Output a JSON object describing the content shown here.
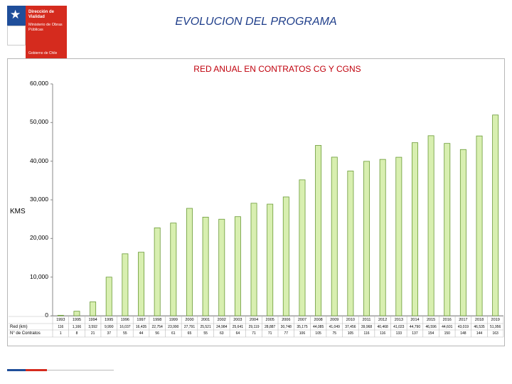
{
  "logo": {
    "line1": "Dirección de Vialidad",
    "line2": "Ministerio de Obras Públicas",
    "footer": "Gobierno de Chile",
    "star_glyph": "★"
  },
  "page_title": "EVOLUCION DEL PROGRAMA",
  "chart_data": {
    "type": "bar",
    "title": "RED ANUAL EN CONTRATOS CG Y CGNS",
    "ylabel": "KMS",
    "xlabel": "",
    "ylim": [
      0,
      60000
    ],
    "ytick_labels": [
      "60,000",
      "50,000",
      "40,000",
      "30,000",
      "20,000",
      "10,000",
      "0"
    ],
    "ytick_values": [
      60000,
      50000,
      40000,
      30000,
      20000,
      10000,
      0
    ],
    "grid": false,
    "bar_color": "#d8efb0",
    "bar_stroke": "#6a9a36",
    "categories": [
      "1993",
      "1995",
      "1994",
      "1995",
      "1996",
      "1997",
      "1998",
      "1999",
      "2000",
      "2001",
      "2002",
      "2003",
      "2004",
      "2005",
      "2006",
      "2007",
      "2008",
      "2009",
      "2010",
      "2011",
      "2012",
      "2013",
      "2014",
      "2015",
      "2016",
      "2017",
      "2018",
      "2019"
    ],
    "values": [
      116,
      1166,
      3592,
      9990,
      16037,
      16435,
      22754,
      23990,
      27791,
      25521,
      24984,
      25641,
      29119,
      28887,
      30748,
      35175,
      44085,
      41049,
      37456,
      39968,
      40468,
      41023,
      44790,
      46596,
      44601,
      43019,
      46535,
      51956
    ],
    "table_rows": [
      {
        "label": "Red (km)",
        "cells": [
          "116",
          "1,166",
          "3,592",
          "9,990",
          "16,037",
          "16,435",
          "22,754",
          "23,990",
          "27,791",
          "25,521",
          "24,984",
          "25,641",
          "29,119",
          "28,887",
          "30,748",
          "35,175",
          "44,085",
          "41,049",
          "37,456",
          "39,968",
          "40,468",
          "41,023",
          "44,790",
          "46,596",
          "44,601",
          "43,019",
          "46,535",
          "51,956"
        ]
      },
      {
        "label": "N° de Contratos",
        "cells": [
          "1",
          "8",
          "21",
          "37",
          "55",
          "44",
          "56",
          "61",
          "65",
          "55",
          "63",
          "64",
          "71",
          "71",
          "77",
          "106",
          "105",
          "75",
          "105",
          "116",
          "116",
          "133",
          "137",
          "154",
          "150",
          "148",
          "144",
          "163"
        ]
      }
    ]
  }
}
